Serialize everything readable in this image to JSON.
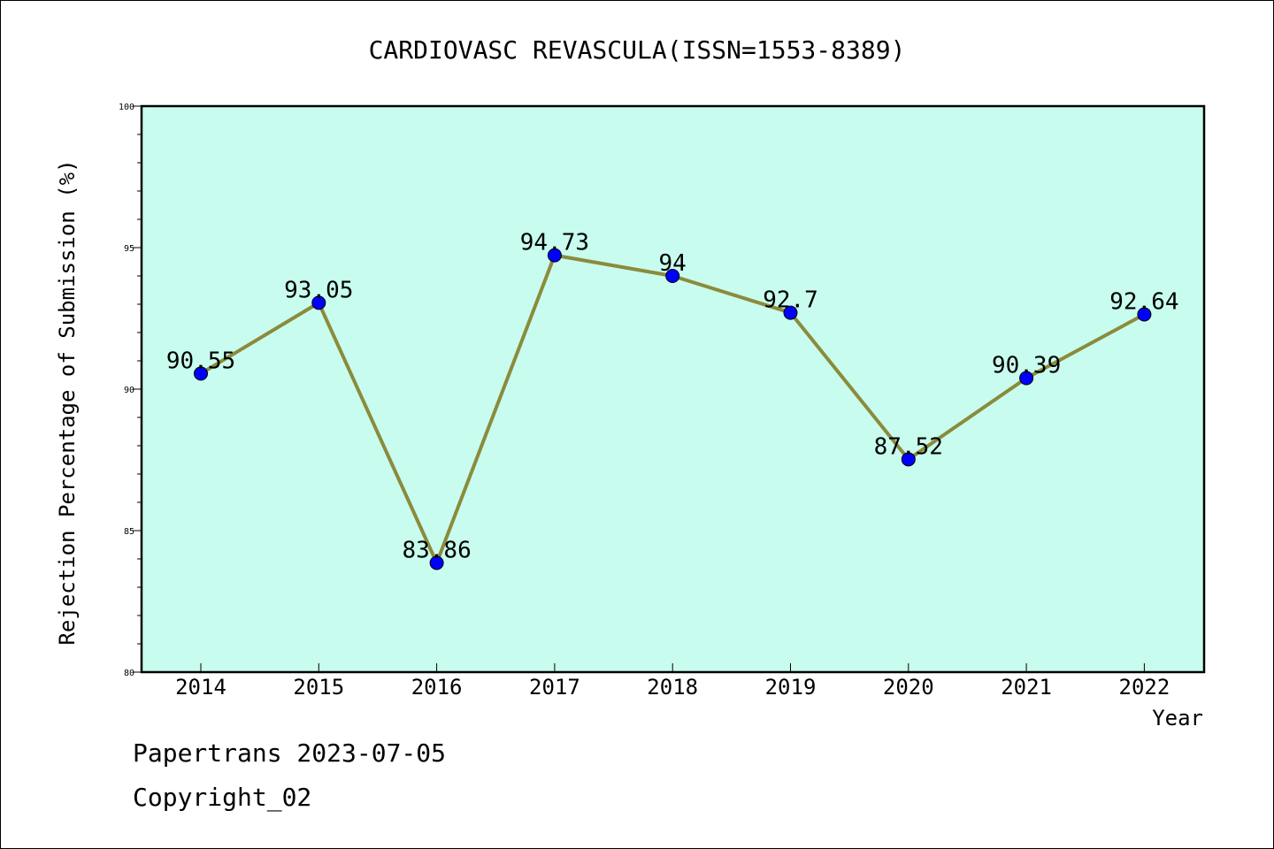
{
  "chart_data": {
    "type": "line",
    "title": "CARDIOVASC REVASCULA(ISSN=1553-8389)",
    "xlabel": "Year",
    "ylabel": "Rejection Percentage of Submission (%)",
    "categories": [
      "2014",
      "2015",
      "2016",
      "2017",
      "2018",
      "2019",
      "2020",
      "2021",
      "2022"
    ],
    "values": [
      90.55,
      93.05,
      83.86,
      94.73,
      94,
      92.7,
      87.52,
      90.39,
      92.64
    ],
    "data_labels": [
      "90.55",
      "93.05",
      "83.86",
      "94.73",
      "94",
      "92.7",
      "87.52",
      "90.39",
      "92.64"
    ],
    "ylim": [
      80,
      100
    ],
    "y_ticks": [
      "80",
      "85",
      "90",
      "95",
      "100"
    ],
    "grid": false,
    "colors": {
      "plot_background": "#c8fcee",
      "line": "#8b8b3c",
      "marker": "#0000ff"
    }
  },
  "footer": {
    "source": "Papertrans 2023-07-05",
    "copyright": "Copyright_02"
  }
}
